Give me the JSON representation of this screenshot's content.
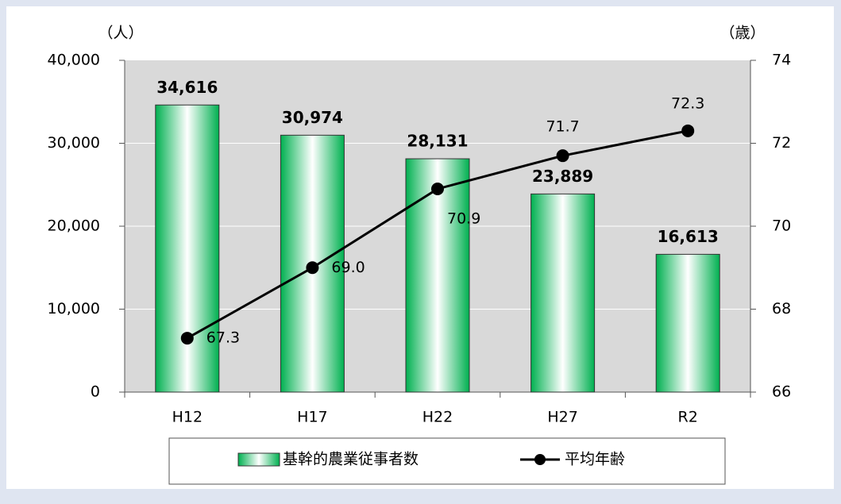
{
  "chart_data": {
    "type": "bar",
    "categories": [
      "H12",
      "H17",
      "H22",
      "H27",
      "R2"
    ],
    "y_unit_label": "（人）",
    "y2_unit_label": "（歳）",
    "series": [
      {
        "name": "基幹的農業従事者数",
        "type": "bar",
        "color": "#00b050",
        "values": [
          34616,
          30974,
          28131,
          23889,
          16613
        ],
        "value_labels": [
          "34,616",
          "30,974",
          "28,131",
          "23,889",
          "16,613"
        ]
      },
      {
        "name": "平均年齢",
        "type": "line",
        "axis": "y2",
        "color": "#000000",
        "values": [
          67.3,
          69.0,
          70.9,
          71.7,
          72.3
        ],
        "value_labels": [
          "67.3",
          "69.0",
          "70.9",
          "71.7",
          "72.3"
        ]
      }
    ],
    "ylim": [
      0,
      40000
    ],
    "yticks": [
      0,
      {
        "value": 10000,
        "label": "10,000"
      },
      {
        "value": 20000,
        "label": "20,000"
      },
      {
        "value": 30000,
        "label": "30,000"
      },
      {
        "value": 40000,
        "label": "40,000"
      }
    ],
    "y2lim": [
      66,
      74
    ],
    "y2ticks": [
      66,
      68,
      70,
      72,
      74
    ],
    "grid": true,
    "legend": "bottom"
  }
}
